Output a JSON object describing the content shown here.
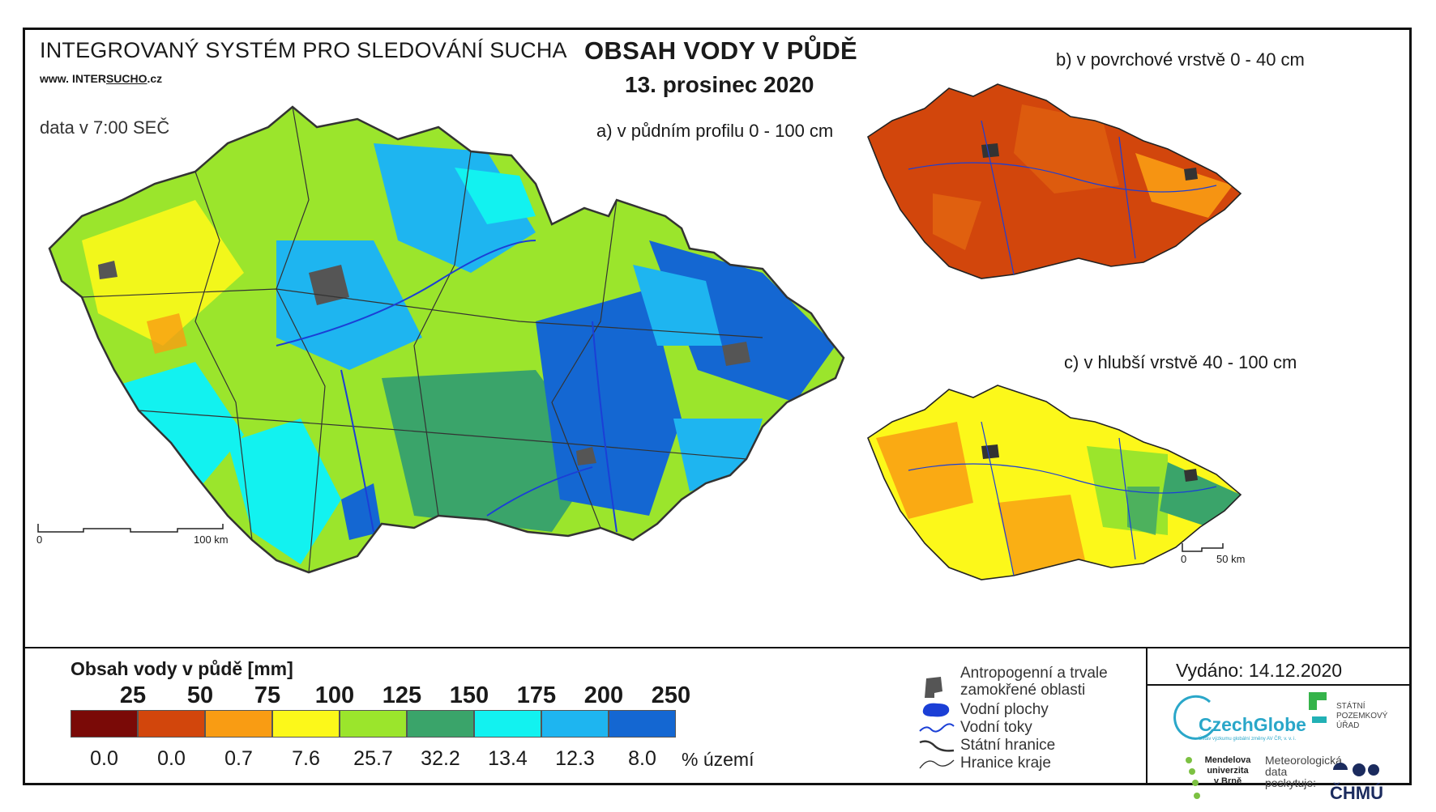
{
  "header": {
    "system_title": "INTEGROVANÝ SYSTÉM PRO SLEDOVÁNÍ SUCHA",
    "website_prefix": "www.",
    "website_brand_a": "INTER",
    "website_brand_b": "SUCHO",
    "website_suffix": ".cz",
    "data_time": "data v 7:00 SEČ",
    "main_title": "OBSAH VODY V PŮDĚ",
    "date": "13. prosinec 2020"
  },
  "maps": {
    "a_label": "a) v půdním profilu 0 - 100 cm",
    "b_label": "b) v povrchové vrstvě 0 - 40 cm",
    "c_label": "c) v hlubší vrstvě 40 - 100 cm",
    "scale_main": {
      "zero": "0",
      "end": "100 km"
    },
    "scale_small": {
      "zero": "0",
      "end": "50 km"
    }
  },
  "legend": {
    "title": "Obsah vody v půdě  [mm]",
    "thresholds": [
      "25",
      "50",
      "75",
      "100",
      "125",
      "150",
      "175",
      "200",
      "250"
    ],
    "class_colors": [
      "#7a0a07",
      "#d2460c",
      "#f99c13",
      "#fcf81a",
      "#9be52c",
      "#3aa46a",
      "#12f2f0",
      "#1eb5f0",
      "#1467d2"
    ],
    "percentages": [
      "0.0",
      "0.0",
      "0.7",
      "7.6",
      "25.7",
      "32.2",
      "13.4",
      "12.3",
      "8.0"
    ],
    "percent_unit": "% území"
  },
  "symbols": {
    "anthropogenic": "Antropogenní a trvale\nzamokřené oblasti",
    "water_bodies": "Vodní plochy",
    "rivers": "Vodní toky",
    "state_border": "Státní hranice",
    "region_border": "Hranice kraje"
  },
  "issued": "Vydáno: 14.12.2020",
  "logos": {
    "czechglobe": "CzechGlobe",
    "czechglobe_sub": "Ústav výzkumu globální změny AV ČR, v. v. i.",
    "spu": "STÁTNÍ POZEMKOVÝ ÚŘAD",
    "mendel": "Mendelova univerzita v Brně",
    "meteo": "Meteorologická data poskytuje:",
    "chmu": "ČHMÚ"
  }
}
